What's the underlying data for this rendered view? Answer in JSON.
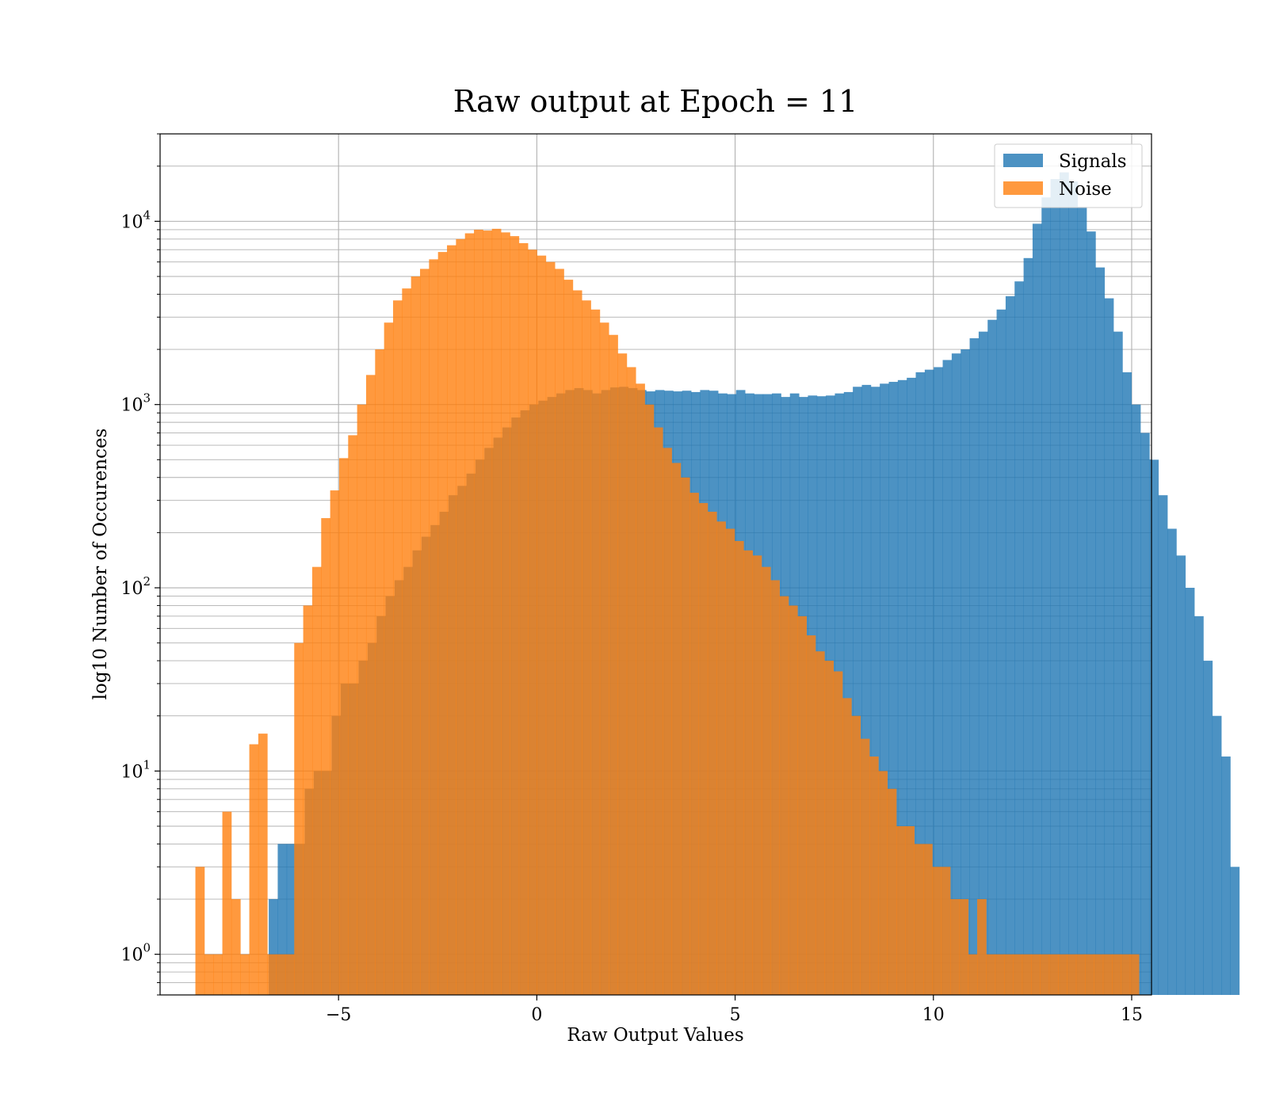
{
  "chart_data": {
    "type": "bar",
    "title": "Raw output at Epoch = 11",
    "xlabel": "Raw Output Values",
    "ylabel": "log10 Number of Occurences",
    "xlim": [
      -9.5,
      15.5
    ],
    "ylim": [
      0.6,
      30000
    ],
    "yscale": "log",
    "grid": true,
    "legend_position": "top-right",
    "x_ticks": [
      -5,
      0,
      5,
      10,
      15
    ],
    "x_tick_labels": [
      "−5",
      "0",
      "5",
      "10",
      "15"
    ],
    "y_ticks": [
      1,
      10,
      100,
      1000,
      10000
    ],
    "y_tick_bases": [
      "10",
      "10",
      "10",
      "10",
      "10"
    ],
    "y_tick_exponents": [
      "0",
      "1",
      "2",
      "3",
      "4"
    ],
    "series": [
      {
        "name": "Signals",
        "color": "#1f77b4",
        "opacity": 0.8,
        "bin_start": -6.76,
        "bin_width": 0.2266,
        "values": [
          2,
          4,
          4,
          4,
          8,
          10,
          10,
          20,
          30,
          30,
          40,
          50,
          70,
          90,
          110,
          130,
          160,
          190,
          220,
          260,
          320,
          360,
          420,
          500,
          580,
          660,
          750,
          850,
          930,
          1000,
          1050,
          1100,
          1150,
          1200,
          1230,
          1200,
          1150,
          1200,
          1240,
          1250,
          1230,
          1200,
          1180,
          1200,
          1190,
          1180,
          1190,
          1170,
          1200,
          1190,
          1150,
          1140,
          1200,
          1150,
          1140,
          1140,
          1150,
          1100,
          1150,
          1100,
          1120,
          1110,
          1120,
          1150,
          1170,
          1250,
          1280,
          1250,
          1300,
          1330,
          1360,
          1400,
          1500,
          1550,
          1600,
          1750,
          1900,
          2000,
          2300,
          2500,
          2900,
          3300,
          3900,
          4700,
          6300,
          9700,
          13500,
          17000,
          18500,
          16500,
          12000,
          8800,
          5600,
          3800,
          2500,
          1500,
          1000,
          700,
          500,
          320,
          210,
          150,
          100,
          70,
          40,
          20,
          12,
          3
        ]
      },
      {
        "name": "Noise",
        "color": "#ff7f0e",
        "opacity": 0.8,
        "bin_start": -8.61,
        "bin_width": 0.2266,
        "values": [
          3,
          1,
          1,
          6,
          2,
          1,
          14,
          16,
          1,
          1,
          1,
          50,
          80,
          130,
          240,
          340,
          510,
          680,
          1000,
          1450,
          2000,
          2800,
          3700,
          4300,
          5000,
          5500,
          6200,
          6800,
          7400,
          8000,
          8600,
          9000,
          8900,
          9100,
          8700,
          8300,
          7600,
          7000,
          6500,
          6000,
          5500,
          4800,
          4200,
          3700,
          3300,
          2800,
          2400,
          1900,
          1600,
          1300,
          1000,
          750,
          580,
          480,
          400,
          330,
          290,
          260,
          230,
          210,
          180,
          160,
          150,
          130,
          110,
          90,
          80,
          70,
          55,
          45,
          40,
          35,
          25,
          20,
          15,
          12,
          10,
          8,
          5,
          5,
          4,
          4,
          3,
          3,
          2,
          2,
          1,
          2,
          1,
          1,
          1,
          1,
          1,
          1,
          1,
          1,
          1,
          1,
          1,
          1,
          1,
          1,
          1,
          1,
          1
        ]
      }
    ]
  }
}
